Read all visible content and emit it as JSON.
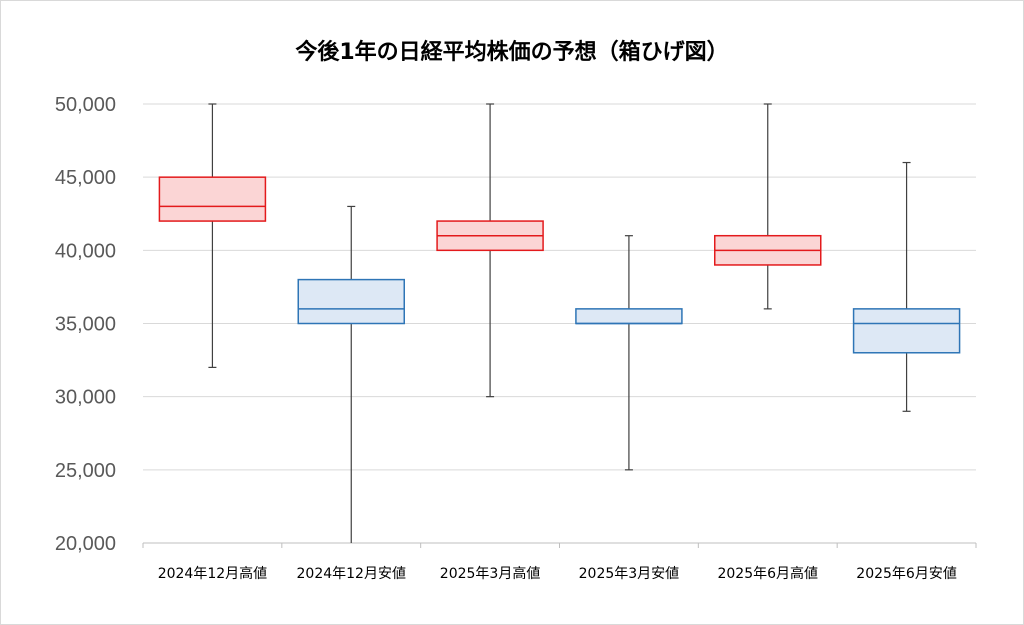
{
  "chart_data": {
    "type": "boxplot",
    "title": "今後1年の日経平均株価の予想（箱ひげ図）",
    "xlabel": "",
    "ylabel": "",
    "ylim": [
      20000,
      50000
    ],
    "y_ticks": [
      "20,000",
      "25,000",
      "30,000",
      "35,000",
      "40,000",
      "45,000",
      "50,000"
    ],
    "y_tick_values": [
      20000,
      25000,
      30000,
      35000,
      40000,
      45000,
      50000
    ],
    "grid": true,
    "categories": [
      "2024年12月高値",
      "2024年12月安値",
      "2025年3月高値",
      "2025年3月安値",
      "2025年6月高値",
      "2025年6月安値"
    ],
    "boxes": [
      {
        "min": 32000,
        "q1": 42000,
        "median": 43000,
        "q3": 45000,
        "max": 50000,
        "kind": "high"
      },
      {
        "min": 20000,
        "q1": 35000,
        "median": 36000,
        "q3": 38000,
        "max": 43000,
        "kind": "low"
      },
      {
        "min": 30000,
        "q1": 40000,
        "median": 41000,
        "q3": 42000,
        "max": 50000,
        "kind": "high"
      },
      {
        "min": 25000,
        "q1": 35000,
        "median": 35000,
        "q3": 36000,
        "max": 41000,
        "kind": "low"
      },
      {
        "min": 36000,
        "q1": 39000,
        "median": 40000,
        "q3": 41000,
        "max": 50000,
        "kind": "high"
      },
      {
        "min": 29000,
        "q1": 33000,
        "median": 35000,
        "q3": 36000,
        "max": 46000,
        "kind": "low"
      }
    ],
    "colors": {
      "high_stroke": "#e31a1c",
      "high_fill": "#fbd5d5",
      "low_stroke": "#2e75b6",
      "low_fill": "#dde8f5",
      "whisker": "#404040",
      "grid": "#d9d9d9",
      "axis": "#bfbfbf"
    }
  }
}
